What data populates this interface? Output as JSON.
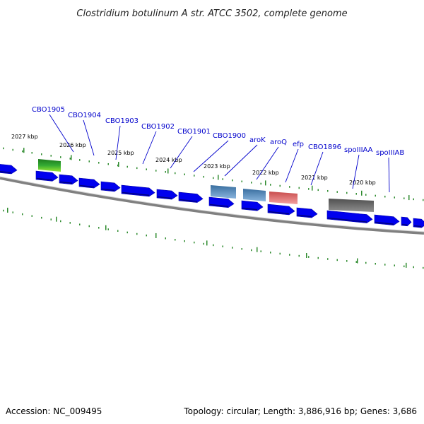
{
  "title": "Clostridium botulinum A str. ATCC 3502, complete genome",
  "footer": {
    "accession": "Accession: NC_009495",
    "summary": "Topology: circular; Length: 3,886,916 bp; Genes: 3,686"
  },
  "colors": {
    "cds": "#0000ee",
    "backbone": "#808080",
    "tick": "#2e8b2e",
    "label": "#0000cc",
    "leader": "#0000cc"
  },
  "scale_labels": [
    {
      "text": "2027 kbp"
    },
    {
      "text": "2026 kbp"
    },
    {
      "text": "2025 kbp"
    },
    {
      "text": "2024 kbp"
    },
    {
      "text": "2023 kbp"
    },
    {
      "text": "2022 kbp"
    },
    {
      "text": "2021 kbp"
    },
    {
      "text": "2020 kbp"
    }
  ],
  "gene_labels": [
    {
      "text": "CBO1905"
    },
    {
      "text": "CBO1904"
    },
    {
      "text": "CBO1903"
    },
    {
      "text": "CBO1902"
    },
    {
      "text": "CBO1901"
    },
    {
      "text": "CBO1900"
    },
    {
      "text": "aroK"
    },
    {
      "text": "aroQ"
    },
    {
      "text": "efp"
    },
    {
      "text": "CBO1896"
    },
    {
      "text": "spoIIIAA"
    },
    {
      "text": "spoIIIAB"
    }
  ],
  "feature_legend_colors": [
    {
      "name": "green-feature",
      "top": "#1e7a1e",
      "mid": "#33aa33",
      "bottom": "#99e633"
    },
    {
      "name": "steelblue-feature",
      "top": "#3a6fa0",
      "bottom": "#88b4dd"
    },
    {
      "name": "pink-feature",
      "top": "#c84c4c",
      "bottom": "#f4a0a0"
    },
    {
      "name": "gray-feature",
      "top": "#505050",
      "bottom": "#909090"
    }
  ]
}
